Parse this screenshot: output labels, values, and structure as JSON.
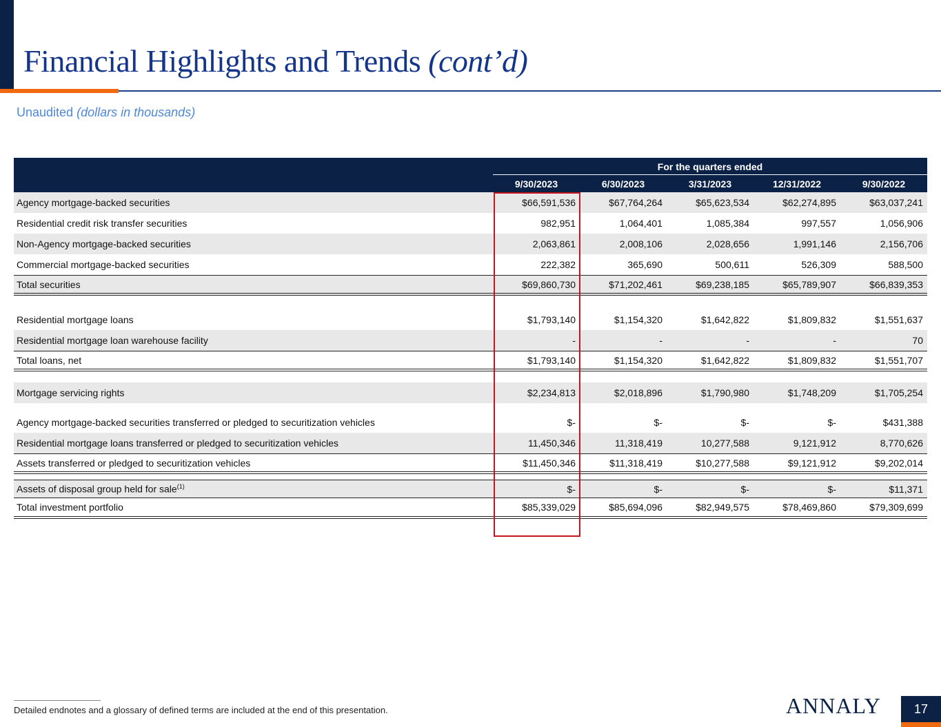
{
  "header": {
    "title": "Financial Highlights and Trends",
    "title_suffix": "(cont’d)",
    "subtitle": "Unaudited",
    "subtitle_italic": "(dollars in thousands)"
  },
  "table": {
    "group_header": "For the quarters ended",
    "columns": [
      "9/30/2023",
      "6/30/2023",
      "3/31/2023",
      "12/31/2022",
      "9/30/2022"
    ],
    "rows": [
      {
        "label": "Agency mortgage-backed securities",
        "values": [
          "$66,591,536",
          "$67,764,264",
          "$65,623,534",
          "$62,274,895",
          "$63,037,241"
        ]
      },
      {
        "label": "Residential credit risk transfer securities",
        "values": [
          "982,951",
          "1,064,401",
          "1,085,384",
          "997,557",
          "1,056,906"
        ]
      },
      {
        "label": "Non-Agency mortgage-backed securities",
        "values": [
          "2,063,861",
          "2,008,106",
          "2,028,656",
          "1,991,146",
          "2,156,706"
        ]
      },
      {
        "label": "Commercial mortgage-backed securities",
        "values": [
          "222,382",
          "365,690",
          "500,611",
          "526,309",
          "588,500"
        ]
      },
      {
        "label": "Total securities",
        "values": [
          "$69,860,730",
          "$71,202,461",
          "$69,238,185",
          "$65,789,907",
          "$66,839,353"
        ]
      },
      {
        "label": "Residential mortgage loans",
        "values": [
          "$1,793,140",
          "$1,154,320",
          "$1,642,822",
          "$1,809,832",
          "$1,551,637"
        ]
      },
      {
        "label": "Residential mortgage loan warehouse facility",
        "values": [
          "-",
          "-",
          "-",
          "-",
          "70"
        ]
      },
      {
        "label": "Total loans, net",
        "values": [
          "$1,793,140",
          "$1,154,320",
          "$1,642,822",
          "$1,809,832",
          "$1,551,707"
        ]
      },
      {
        "label": "Mortgage servicing rights",
        "values": [
          "$2,234,813",
          "$2,018,896",
          "$1,790,980",
          "$1,748,209",
          "$1,705,254"
        ]
      },
      {
        "label": "Agency mortgage-backed securities transferred or pledged to securitization vehicles",
        "values": [
          "$-",
          "$-",
          "$-",
          "$-",
          "$431,388"
        ]
      },
      {
        "label": "Residential mortgage loans transferred or pledged to securitization vehicles",
        "values": [
          "11,450,346",
          "11,318,419",
          "10,277,588",
          "9,121,912",
          "8,770,626"
        ]
      },
      {
        "label": "Assets transferred or pledged to securitization vehicles",
        "values": [
          "$11,450,346",
          "$11,318,419",
          "$10,277,588",
          "$9,121,912",
          "$9,202,014"
        ]
      },
      {
        "label": "Assets of disposal group held for sale",
        "sup": "(1)",
        "values": [
          "$-",
          "$-",
          "$-",
          "$-",
          "$11,371"
        ]
      },
      {
        "label": "Total investment portfolio",
        "values": [
          "$85,339,029",
          "$85,694,096",
          "$82,949,575",
          "$78,469,860",
          "$79,309,699"
        ]
      }
    ]
  },
  "footer": {
    "note": "Detailed endnotes and a glossary of defined terms are included at the end of this presentation.",
    "logo": "ANNALY",
    "page": "17"
  },
  "colors": {
    "navy": "#0b2145",
    "orange": "#f26a10",
    "title_blue": "#14358a",
    "highlight_red": "#c0161c"
  }
}
